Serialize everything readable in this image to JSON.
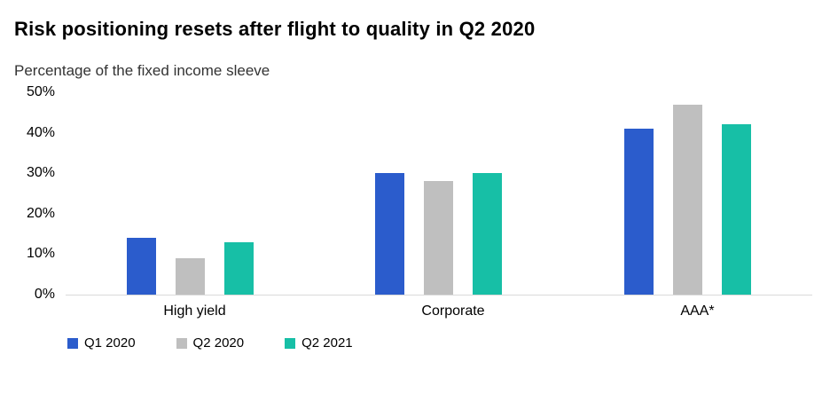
{
  "chart_data": {
    "type": "bar",
    "title": "Risk positioning resets after flight to quality in Q2 2020",
    "subtitle": "Percentage of the fixed income sleeve",
    "categories": [
      "High yield",
      "Corporate",
      "AAA*"
    ],
    "series": [
      {
        "name": "Q1 2020",
        "color": "#2b5ccc",
        "values": [
          14,
          30,
          41
        ]
      },
      {
        "name": "Q2 2020",
        "color": "#bfbfbf",
        "values": [
          9,
          28,
          47
        ]
      },
      {
        "name": "Q2 2021",
        "color": "#17bfa6",
        "values": [
          13,
          30,
          42
        ]
      }
    ],
    "xlabel": "",
    "ylabel": "",
    "ylim": [
      0,
      50
    ],
    "y_ticks": [
      "0%",
      "10%",
      "20%",
      "30%",
      "40%",
      "50%"
    ],
    "grid": false,
    "legend_position": "bottom-left"
  }
}
